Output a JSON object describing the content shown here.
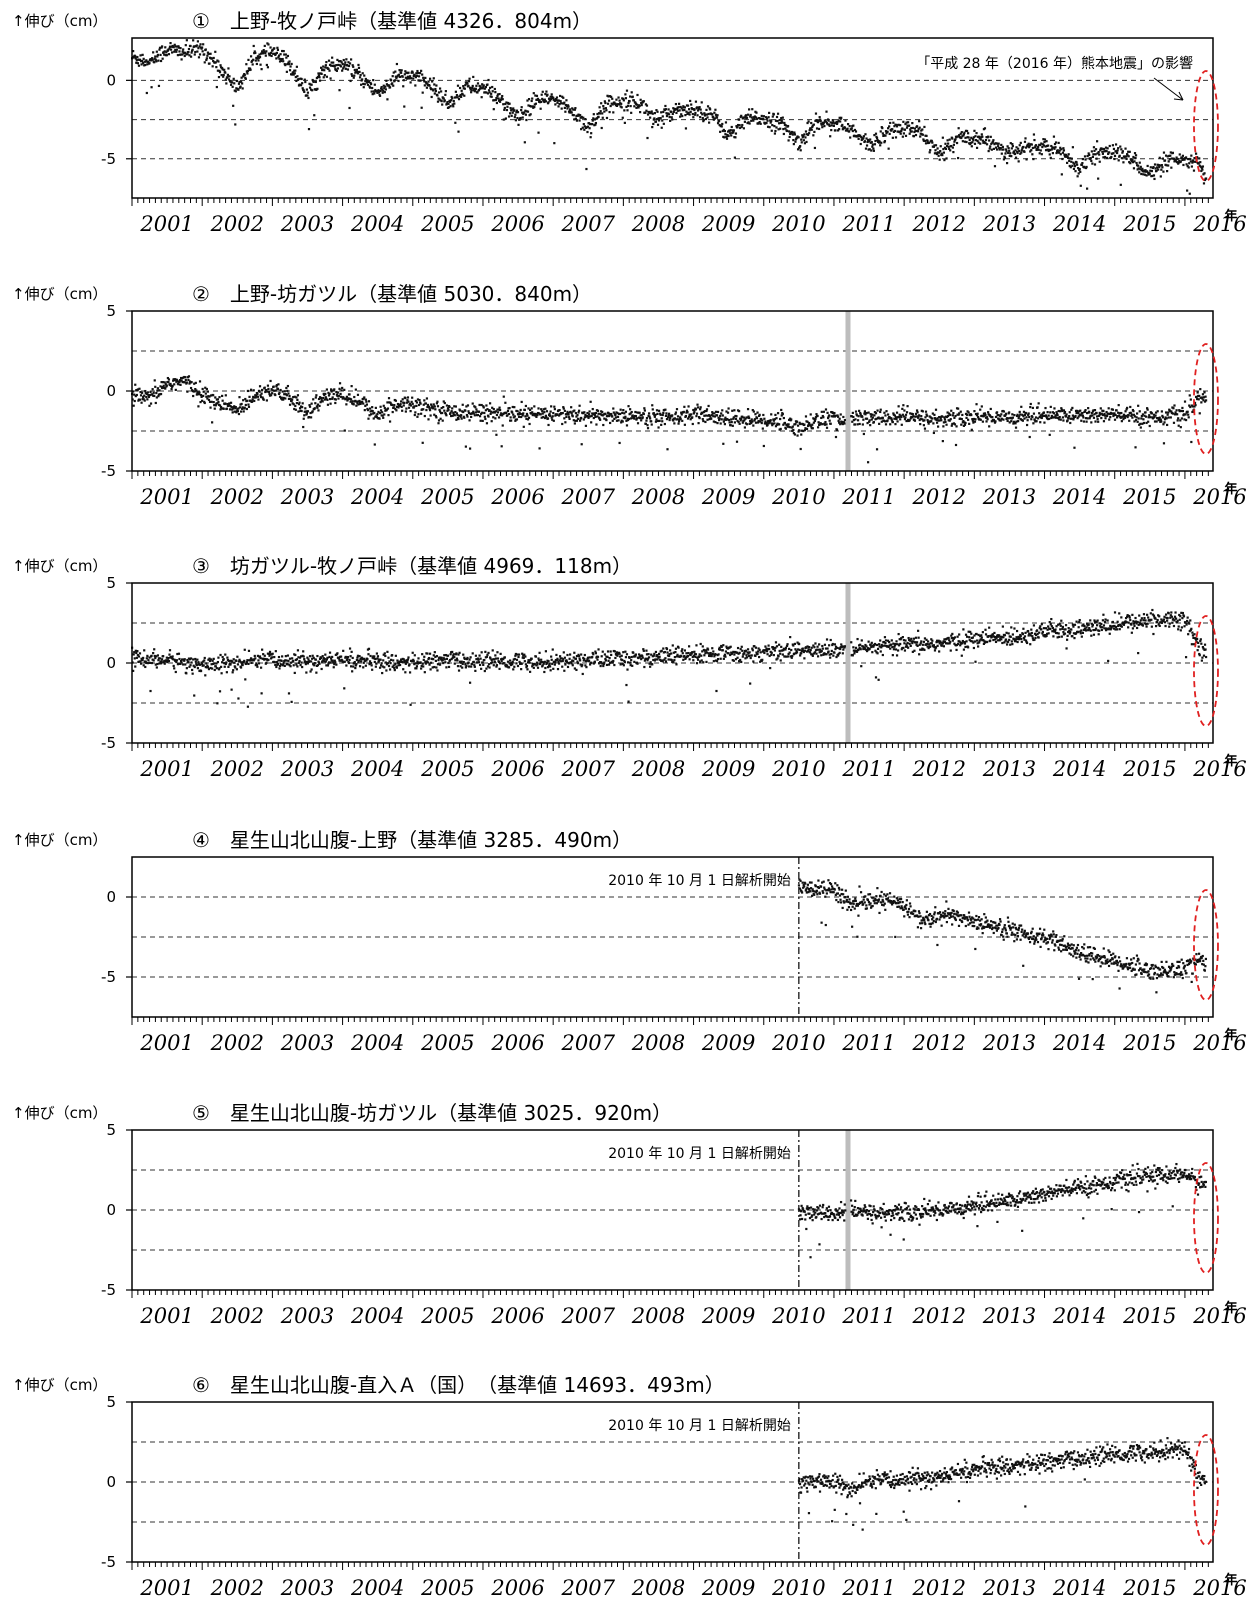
{
  "colors": {
    "points": "#111111",
    "grid": "#333333",
    "highlight": "#e02020",
    "gap": "#bdbdbd"
  },
  "x_unit": "年",
  "unit_label": "↑伸び（cm）",
  "eq_annotation": "「平成 28 年（2016 年）熊本地震」の影響",
  "chart_data": [
    {
      "type": "scatter",
      "title": "①　上野-牧ノ戸峠（基準値 4326．804m）",
      "xlabel": "年",
      "ylabel": "↑伸び（cm）",
      "xlim": [
        2001.0,
        2016.4
      ],
      "ylim": [
        -7.5,
        2.7
      ],
      "y_ticks": [
        0,
        -5
      ],
      "y_tick_labels": [
        "0",
        "-5"
      ],
      "x_ticks": [
        2001,
        2002,
        2003,
        2004,
        2005,
        2006,
        2007,
        2008,
        2009,
        2010,
        2011,
        2012,
        2013,
        2014,
        2015,
        2016
      ],
      "grid": "dashed at 0, -2.5, -5",
      "gridlines": [
        0,
        -2.5,
        -5
      ],
      "start_note": "",
      "start_year": null,
      "gap_year": null,
      "x": [
        2001.0,
        2001.25,
        2001.5,
        2001.75,
        2002.0,
        2002.25,
        2002.5,
        2002.75,
        2003.0,
        2003.25,
        2003.5,
        2003.75,
        2004.0,
        2004.25,
        2004.5,
        2004.75,
        2005.0,
        2005.25,
        2005.5,
        2005.75,
        2006.0,
        2006.25,
        2006.5,
        2006.75,
        2007.0,
        2007.25,
        2007.5,
        2007.75,
        2008.0,
        2008.25,
        2008.5,
        2008.75,
        2009.0,
        2009.25,
        2009.5,
        2009.75,
        2010.0,
        2010.25,
        2010.5,
        2010.75,
        2011.0,
        2011.25,
        2011.5,
        2011.75,
        2012.0,
        2012.25,
        2012.5,
        2012.75,
        2013.0,
        2013.25,
        2013.5,
        2013.75,
        2014.0,
        2014.25,
        2014.5,
        2014.75,
        2015.0,
        2015.25,
        2015.5,
        2015.75,
        2016.0,
        2016.2,
        2016.3
      ],
      "y": [
        1.5,
        1.2,
        2.0,
        1.8,
        2.0,
        0.8,
        -0.5,
        1.5,
        1.8,
        1.0,
        -0.8,
        0.8,
        1.0,
        0.3,
        -0.8,
        0.2,
        0.3,
        -0.3,
        -1.5,
        -0.4,
        -0.5,
        -1.2,
        -2.5,
        -1.3,
        -1.2,
        -1.8,
        -3.0,
        -1.6,
        -1.2,
        -1.5,
        -2.6,
        -1.8,
        -1.8,
        -2.1,
        -3.5,
        -2.5,
        -2.4,
        -2.8,
        -4.0,
        -2.6,
        -2.7,
        -3.2,
        -4.2,
        -3.2,
        -3.1,
        -3.3,
        -4.8,
        -3.6,
        -3.6,
        -3.9,
        -4.7,
        -4.3,
        -4.2,
        -4.6,
        -5.6,
        -4.6,
        -4.6,
        -5.0,
        -6.0,
        -5.2,
        -5.1,
        -5.3,
        -6.3
      ],
      "highlight_2016": true,
      "show_eq_annotation": true
    },
    {
      "type": "scatter",
      "title": "②　上野-坊ガツル（基準値 5030．840m）",
      "xlabel": "年",
      "ylabel": "↑伸び（cm）",
      "xlim": [
        2001.0,
        2016.4
      ],
      "ylim": [
        -5,
        5
      ],
      "y_ticks": [
        5,
        0,
        -5
      ],
      "y_tick_labels": [
        "5",
        "0",
        "-5"
      ],
      "x_ticks": [
        2001,
        2002,
        2003,
        2004,
        2005,
        2006,
        2007,
        2008,
        2009,
        2010,
        2011,
        2012,
        2013,
        2014,
        2015,
        2016
      ],
      "grid": "dashed at 2.5, 0, -2.5",
      "gridlines": [
        2.5,
        0,
        -2.5
      ],
      "start_note": "",
      "start_year": null,
      "gap_year": 2011.2,
      "x": [
        2001.0,
        2001.25,
        2001.5,
        2001.75,
        2002.0,
        2002.25,
        2002.5,
        2002.75,
        2003.0,
        2003.25,
        2003.5,
        2003.75,
        2004.0,
        2004.25,
        2004.5,
        2004.75,
        2005.0,
        2005.5,
        2006.0,
        2006.5,
        2007.0,
        2007.5,
        2008.0,
        2008.5,
        2009.0,
        2009.5,
        2010.0,
        2010.25,
        2010.5,
        2010.75,
        2011.0,
        2011.15,
        2011.3,
        2011.6,
        2012.0,
        2012.3,
        2012.6,
        2013.0,
        2013.5,
        2014.0,
        2014.5,
        2015.0,
        2015.5,
        2016.0,
        2016.2,
        2016.3
      ],
      "y": [
        -0.3,
        -0.5,
        0.5,
        0.6,
        -0.2,
        -0.8,
        -1.2,
        -0.2,
        0.2,
        -0.5,
        -1.3,
        -0.4,
        -0.2,
        -0.7,
        -1.5,
        -0.8,
        -0.8,
        -1.3,
        -1.3,
        -1.5,
        -1.4,
        -1.6,
        -1.5,
        -1.6,
        -1.5,
        -1.7,
        -1.8,
        -1.9,
        -2.3,
        -1.8,
        -1.7,
        -1.9,
        -1.7,
        -1.7,
        -1.6,
        -1.7,
        -1.8,
        -1.6,
        -1.6,
        -1.5,
        -1.5,
        -1.5,
        -1.6,
        -1.5,
        -0.5,
        -0.3
      ],
      "highlight_2016": true,
      "show_eq_annotation": false
    },
    {
      "type": "scatter",
      "title": "③　坊ガツル-牧ノ戸峠（基準値 4969．118m）",
      "xlabel": "年",
      "ylabel": "↑伸び（cm）",
      "xlim": [
        2001.0,
        2016.4
      ],
      "ylim": [
        -5,
        5
      ],
      "y_ticks": [
        5,
        0,
        -5
      ],
      "y_tick_labels": [
        "5",
        "0",
        "-5"
      ],
      "x_ticks": [
        2001,
        2002,
        2003,
        2004,
        2005,
        2006,
        2007,
        2008,
        2009,
        2010,
        2011,
        2012,
        2013,
        2014,
        2015,
        2016
      ],
      "grid": "dashed at 2.5, 0, -2.5",
      "gridlines": [
        2.5,
        0,
        -2.5
      ],
      "start_note": "",
      "start_year": null,
      "gap_year": 2011.2,
      "x": [
        2001.0,
        2001.5,
        2002.0,
        2002.5,
        2003.0,
        2003.5,
        2004.0,
        2004.5,
        2005.0,
        2005.5,
        2006.0,
        2006.5,
        2007.0,
        2007.5,
        2008.0,
        2008.5,
        2009.0,
        2009.5,
        2010.0,
        2010.5,
        2011.0,
        2011.3,
        2011.6,
        2012.0,
        2012.5,
        2013.0,
        2013.5,
        2014.0,
        2014.5,
        2015.0,
        2015.5,
        2016.0,
        2016.2,
        2016.3
      ],
      "y": [
        0.3,
        0.2,
        -0.1,
        0.0,
        0.2,
        0.1,
        0.2,
        0.1,
        0.0,
        0.2,
        0.1,
        0.1,
        0.1,
        0.2,
        0.3,
        0.4,
        0.5,
        0.6,
        0.7,
        0.8,
        0.8,
        0.8,
        1.0,
        1.1,
        1.2,
        1.5,
        1.6,
        2.0,
        2.1,
        2.4,
        2.7,
        2.8,
        1.0,
        1.0
      ],
      "highlight_2016": true,
      "show_eq_annotation": false
    },
    {
      "type": "scatter",
      "title": "④　星生山北山腹-上野（基準値 3285．490m）",
      "xlabel": "年",
      "ylabel": "↑伸び（cm）",
      "xlim": [
        2001.0,
        2016.4
      ],
      "ylim": [
        -7.5,
        2.5
      ],
      "y_ticks": [
        0,
        -5
      ],
      "y_tick_labels": [
        "0",
        "-5"
      ],
      "x_ticks": [
        2001,
        2002,
        2003,
        2004,
        2005,
        2006,
        2007,
        2008,
        2009,
        2010,
        2011,
        2012,
        2013,
        2014,
        2015,
        2016
      ],
      "grid": "dashed at 0, -2.5, -5",
      "gridlines": [
        0,
        -2.5,
        -5
      ],
      "start_note": "2010 年 10 月 1 日解析開始",
      "start_year": 2010.5,
      "gap_year": null,
      "x": [
        2010.5,
        2010.75,
        2011.0,
        2011.25,
        2011.5,
        2011.75,
        2012.0,
        2012.25,
        2012.5,
        2012.75,
        2013.0,
        2013.5,
        2014.0,
        2014.5,
        2015.0,
        2015.25,
        2015.5,
        2016.0,
        2016.2,
        2016.3
      ],
      "y": [
        0.5,
        0.6,
        0.5,
        -0.5,
        -0.3,
        -0.2,
        -0.5,
        -1.5,
        -1.2,
        -1.2,
        -1.5,
        -2.0,
        -2.6,
        -3.5,
        -4.0,
        -4.3,
        -4.6,
        -4.5,
        -3.8,
        -4.3
      ],
      "highlight_2016": true,
      "show_eq_annotation": false
    },
    {
      "type": "scatter",
      "title": "⑤　星生山北山腹-坊ガツル（基準値 3025．920m）",
      "xlabel": "年",
      "ylabel": "↑伸び（cm）",
      "xlim": [
        2001.0,
        2016.4
      ],
      "ylim": [
        -5,
        5
      ],
      "y_ticks": [
        5,
        0,
        -5
      ],
      "y_tick_labels": [
        "5",
        "0",
        "-5"
      ],
      "x_ticks": [
        2001,
        2002,
        2003,
        2004,
        2005,
        2006,
        2007,
        2008,
        2009,
        2010,
        2011,
        2012,
        2013,
        2014,
        2015,
        2016
      ],
      "grid": "dashed at 2.5, 0, -2.5",
      "gridlines": [
        2.5,
        0,
        -2.5
      ],
      "start_note": "2010 年 10 月 1 日解析開始",
      "start_year": 2010.5,
      "gap_year": 2011.2,
      "x": [
        2010.5,
        2010.75,
        2011.0,
        2011.3,
        2011.6,
        2012.0,
        2012.5,
        2013.0,
        2013.5,
        2014.0,
        2014.5,
        2015.0,
        2015.5,
        2016.0,
        2016.2,
        2016.3
      ],
      "y": [
        -0.2,
        -0.2,
        -0.2,
        -0.1,
        -0.2,
        -0.2,
        0.0,
        0.3,
        0.6,
        1.0,
        1.4,
        1.8,
        2.1,
        2.3,
        1.6,
        1.6
      ],
      "highlight_2016": true,
      "show_eq_annotation": false
    },
    {
      "type": "scatter",
      "title": "⑥　星生山北山腹-直入Ａ（国）　（基準値 14693．493m）",
      "xlabel": "年",
      "ylabel": "↑伸び（cm）",
      "xlim": [
        2001.0,
        2016.4
      ],
      "ylim": [
        -5,
        5
      ],
      "y_ticks": [
        5,
        0,
        -5
      ],
      "y_tick_labels": [
        "5",
        "0",
        "-5"
      ],
      "x_ticks": [
        2001,
        2002,
        2003,
        2004,
        2005,
        2006,
        2007,
        2008,
        2009,
        2010,
        2011,
        2012,
        2013,
        2014,
        2015,
        2016
      ],
      "grid": "dashed at 2.5, 0, -2.5",
      "gridlines": [
        2.5,
        0,
        -2.5
      ],
      "start_note": "2010 年 10 月 1 日解析開始",
      "start_year": 2010.5,
      "gap_year": null,
      "x": [
        2010.5,
        2010.75,
        2011.0,
        2011.25,
        2011.5,
        2012.0,
        2012.5,
        2013.0,
        2013.5,
        2014.0,
        2014.5,
        2015.0,
        2015.5,
        2016.0,
        2016.2,
        2016.3
      ],
      "y": [
        0.0,
        0.1,
        0.0,
        -0.5,
        0.0,
        0.2,
        0.3,
        0.8,
        1.0,
        1.2,
        1.5,
        1.7,
        1.9,
        2.1,
        0.3,
        0.2
      ],
      "highlight_2016": true,
      "show_eq_annotation": false
    }
  ]
}
